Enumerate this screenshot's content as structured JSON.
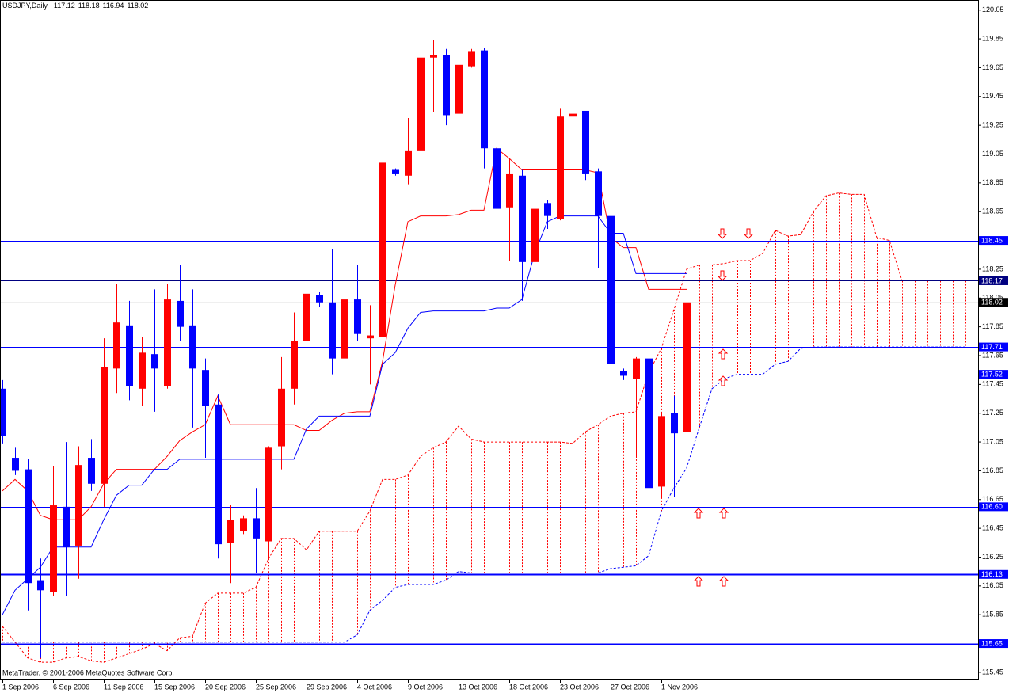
{
  "chart_data": {
    "type": "candlestick",
    "title": "USDJPY,Daily",
    "footer": "MetaTrader, © 2001-2006 MetaQuotes Software Corp.",
    "categories": [
      "1 Sep 2006",
      null,
      null,
      null,
      "6 Sep 2006",
      null,
      null,
      null,
      "11 Sep 2006",
      null,
      null,
      null,
      "15 Sep 2006",
      null,
      null,
      null,
      "20 Sep 2006",
      null,
      null,
      null,
      "25 Sep 2006",
      null,
      null,
      null,
      "29 Sep 2006",
      null,
      null,
      null,
      "4 Oct 2006",
      null,
      null,
      null,
      "9 Oct 2006",
      null,
      null,
      null,
      "13 Oct 2006",
      null,
      null,
      null,
      "18 Oct 2006",
      null,
      null,
      null,
      "23 Oct 2006",
      null,
      null,
      null,
      "27 Oct 2006",
      null,
      null,
      null,
      "1 Nov 2006",
      null,
      null
    ],
    "open": [
      117.42,
      116.94,
      116.86,
      116.09,
      116.01,
      116.6,
      116.33,
      116.94,
      116.76,
      117.56,
      117.86,
      117.42,
      117.66,
      117.44,
      118.03,
      117.86,
      117.55,
      117.31,
      116.35,
      116.43,
      116.52,
      116.36,
      117.02,
      117.42,
      117.75,
      118.07,
      118.02,
      117.63,
      118.04,
      117.77,
      117.78,
      118.94,
      118.9,
      119.07,
      119.72,
      119.74,
      119.33,
      119.66,
      119.77,
      119.09,
      118.68,
      118.9,
      118.3,
      118.71,
      118.6,
      119.31,
      119.35,
      118.93,
      118.62,
      117.54,
      117.49,
      117.63,
      116.74,
      117.25,
      117.12
    ],
    "high": [
      117.48,
      117.01,
      116.93,
      116.24,
      116.88,
      117.05,
      117.02,
      117.07,
      117.77,
      118.15,
      118.03,
      117.78,
      118.11,
      118.15,
      118.28,
      118.11,
      117.63,
      117.38,
      116.61,
      116.54,
      116.73,
      117.02,
      117.64,
      117.95,
      118.19,
      118.09,
      118.39,
      118.2,
      118.28,
      118.0,
      119.1,
      118.95,
      119.3,
      119.79,
      119.84,
      119.78,
      119.86,
      119.78,
      119.79,
      119.13,
      119.02,
      118.94,
      118.79,
      118.73,
      119.37,
      119.65,
      119.35,
      118.95,
      118.72,
      117.56,
      117.64,
      118.03,
      117.25,
      117.37,
      118.18
    ],
    "low": [
      117.04,
      116.82,
      115.88,
      115.55,
      115.98,
      115.98,
      116.1,
      116.71,
      116.6,
      117.39,
      117.34,
      117.3,
      117.26,
      117.42,
      117.75,
      117.15,
      116.94,
      116.24,
      116.07,
      116.41,
      116.14,
      116.24,
      116.86,
      117.31,
      117.5,
      117.99,
      117.52,
      117.39,
      117.75,
      117.45,
      117.7,
      118.9,
      118.84,
      118.9,
      119.34,
      119.25,
      119.06,
      119.65,
      118.95,
      118.37,
      118.31,
      118.03,
      118.14,
      118.53,
      118.59,
      119.07,
      118.87,
      118.26,
      117.15,
      117.48,
      116.94,
      116.6,
      116.66,
      116.67,
      116.94
    ],
    "close": [
      117.09,
      116.85,
      116.07,
      116.02,
      116.61,
      116.32,
      116.89,
      116.76,
      117.57,
      117.88,
      117.44,
      117.67,
      117.56,
      118.04,
      117.85,
      117.56,
      117.3,
      116.34,
      116.51,
      116.52,
      116.38,
      117.01,
      117.42,
      117.75,
      118.08,
      118.02,
      117.63,
      118.04,
      117.8,
      117.79,
      118.99,
      118.91,
      119.07,
      119.72,
      119.74,
      119.32,
      119.67,
      119.76,
      119.09,
      118.67,
      118.91,
      118.3,
      118.67,
      118.62,
      119.31,
      119.33,
      118.91,
      118.62,
      117.59,
      117.51,
      117.63,
      116.73,
      117.23,
      117.11,
      118.02
    ],
    "up_color": "#ff0000",
    "down_color": "#0000ff",
    "bid_color": "#c0c0c0",
    "lines": [
      {
        "color": "#ff0000",
        "values": [
          116.71,
          116.79,
          116.71,
          116.54,
          116.51,
          116.51,
          116.51,
          116.6,
          116.76,
          116.86,
          116.86,
          116.86,
          116.86,
          116.95,
          117.06,
          117.12,
          117.17,
          117.37,
          117.17,
          117.17,
          117.17,
          117.17,
          117.17,
          117.17,
          117.13,
          117.13,
          117.2,
          117.25,
          117.26,
          117.26,
          117.61,
          118.14,
          118.58,
          118.62,
          118.62,
          118.62,
          118.63,
          118.66,
          118.66,
          119.09,
          119.02,
          118.94,
          118.94,
          118.94,
          118.94,
          118.94,
          118.94,
          118.92,
          118.47,
          118.4,
          118.4,
          118.11,
          118.11,
          118.11,
          118.11
        ]
      },
      {
        "color": "#0000ff",
        "values": [
          115.85,
          116.02,
          116.1,
          116.18,
          116.32,
          116.32,
          116.32,
          116.32,
          116.51,
          116.68,
          116.75,
          116.75,
          116.86,
          116.86,
          116.93,
          116.93,
          116.93,
          116.93,
          116.93,
          116.93,
          116.93,
          116.93,
          116.93,
          116.93,
          117.14,
          117.23,
          117.23,
          117.23,
          117.23,
          117.23,
          117.59,
          117.67,
          117.84,
          117.95,
          117.96,
          117.96,
          117.96,
          117.96,
          117.96,
          117.98,
          117.98,
          118.04,
          118.36,
          118.58,
          118.62,
          118.62,
          118.62,
          118.62,
          118.5,
          118.5,
          118.22,
          118.22,
          118.22,
          118.22,
          118.22
        ]
      }
    ],
    "cloud": {
      "color": "#ff0000",
      "span_a": {
        "color": "#ff0000",
        "values": [
          115.77,
          115.66,
          115.55,
          115.52,
          115.52,
          115.55,
          115.56,
          115.53,
          115.52,
          115.55,
          115.58,
          115.61,
          115.65,
          115.6,
          115.69,
          115.7,
          115.93,
          116.0,
          116.0,
          116.0,
          116.04,
          116.24,
          116.38,
          116.38,
          116.3,
          116.43,
          116.43,
          116.43,
          116.43,
          116.57,
          116.79,
          116.79,
          116.82,
          116.95,
          117.01,
          117.05,
          117.16,
          117.07,
          117.05,
          117.05,
          117.05,
          117.05,
          117.05,
          117.05,
          117.05,
          117.04,
          117.12,
          117.17,
          117.23,
          117.25,
          117.26,
          117.53,
          117.7,
          117.97,
          118.25,
          118.28,
          118.28,
          118.29,
          118.31,
          118.31,
          118.36,
          118.52,
          118.48,
          118.49,
          118.65,
          118.76,
          118.78,
          118.77,
          118.77,
          118.47,
          118.45,
          118.17,
          118.17,
          118.17,
          118.17,
          118.17,
          118.17
        ]
      },
      "span_b": {
        "color": "#0000ff",
        "values": [
          115.66,
          115.66,
          115.66,
          115.66,
          115.66,
          115.66,
          115.66,
          115.66,
          115.66,
          115.66,
          115.66,
          115.66,
          115.66,
          115.66,
          115.66,
          115.66,
          115.66,
          115.66,
          115.66,
          115.66,
          115.66,
          115.66,
          115.66,
          115.66,
          115.66,
          115.66,
          115.66,
          115.66,
          115.71,
          115.88,
          115.95,
          116.04,
          116.06,
          116.06,
          116.06,
          116.09,
          116.15,
          116.14,
          116.14,
          116.14,
          116.14,
          116.14,
          116.14,
          116.14,
          116.14,
          116.14,
          116.14,
          116.14,
          116.17,
          116.18,
          116.19,
          116.26,
          116.57,
          116.73,
          116.87,
          117.15,
          117.42,
          117.49,
          117.52,
          117.52,
          117.52,
          117.59,
          117.61,
          117.7,
          117.71,
          117.71,
          117.71,
          117.71,
          117.71,
          117.71,
          117.71,
          117.71,
          117.71,
          117.71,
          117.71,
          117.71,
          117.71
        ]
      }
    },
    "levels": [
      {
        "value": 118.45,
        "color": "#0000ff",
        "width": 1
      },
      {
        "value": 118.17,
        "color": "#000080",
        "width": 1
      },
      {
        "value": 117.71,
        "color": "#0000ff",
        "width": 1
      },
      {
        "value": 117.52,
        "color": "#0000ff",
        "width": 1
      },
      {
        "value": 116.6,
        "label": "116.60",
        "color": "#0000ff",
        "width": 1
      },
      {
        "value": 116.13,
        "color": "#0000ff",
        "width": 2
      },
      {
        "value": 115.65,
        "color": "#0000ff",
        "width": 2
      }
    ],
    "ylim": [
      115.4,
      120.12
    ],
    "yticks": [
      120.05,
      119.85,
      119.65,
      119.45,
      119.25,
      119.05,
      118.85,
      118.65,
      118.45,
      118.25,
      118.05,
      117.85,
      117.65,
      117.45,
      117.25,
      117.05,
      116.85,
      116.65,
      116.45,
      116.25,
      116.05,
      115.85,
      115.65,
      115.45
    ]
  }
}
